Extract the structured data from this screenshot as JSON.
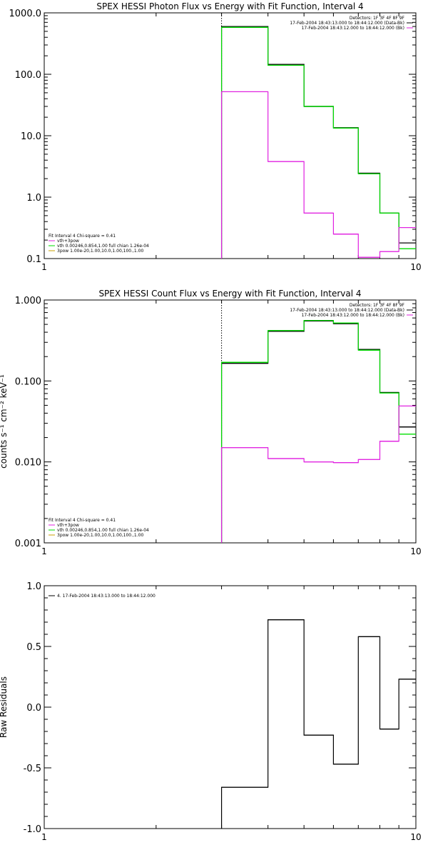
{
  "chart_data": [
    {
      "type": "line",
      "title": "SPEX HESSI Photon Flux vs Energy with Fit Function, Interval 4",
      "xscale": "log",
      "yscale": "log",
      "xlim": [
        1,
        10
      ],
      "ylim": [
        0.1,
        1000
      ],
      "xtick_labels": [
        {
          "value": 1,
          "label": "1"
        },
        {
          "value": 10,
          "label": "10"
        }
      ],
      "ytick_labels": [
        {
          "value": 0.1,
          "label": "0.1"
        },
        {
          "value": 1,
          "label": "1.0"
        },
        {
          "value": 10,
          "label": "10.0"
        },
        {
          "value": 100,
          "label": "100.0"
        },
        {
          "value": 1000,
          "label": "1000.0"
        }
      ],
      "vline_x": 3,
      "legend_top": [
        "Detectors: 1F 3F 4F 8F 9F",
        "17-Feb-2004 18:43:13.000 to 18:44:12.000 (Data-Bk)",
        "17-Feb-2004 18:43:12.000 to 18:44:12.000 (Bk)"
      ],
      "legend_bottom": [
        "Fit Interval  4    Chi-square = 0.41",
        "vth+3pow",
        "vth 0.00246,0.854,1.00  full chian 1.26e-04",
        "3pow 1.00e-20,1.00,10.0,1.00,100.,1.00"
      ],
      "bin_edges": [
        3,
        4,
        5,
        6,
        7,
        8,
        9,
        10
      ],
      "series": [
        {
          "name": "17-Feb-2004 18:43:13.000 to 18:44:12.000 (Data-Bk)",
          "color": "#000000",
          "values": [
            600,
            145,
            30,
            13.5,
            2.45,
            0.55,
            0.18
          ]
        },
        {
          "name": "vth 0.00246,0.854,1.00  full chian 1.26e-04",
          "color": "#00dd00",
          "values": [
            580,
            140,
            30,
            13.3,
            2.4,
            0.55,
            0.145
          ]
        },
        {
          "name": "17-Feb-2004 18:43:12.000 to 18:44:12.000 (Bk)",
          "color": "#e020e0",
          "values": [
            52,
            3.8,
            0.55,
            0.25,
            0.105,
            0.13,
            0.32
          ]
        }
      ]
    },
    {
      "type": "line",
      "title": "SPEX HESSI Count Flux vs Energy with Fit Function, Interval 4",
      "ylabel": "counts s⁻¹ cm⁻² keV⁻¹",
      "xscale": "log",
      "yscale": "log",
      "xlim": [
        1,
        10
      ],
      "ylim": [
        0.001,
        1
      ],
      "xtick_labels": [
        {
          "value": 1,
          "label": "1"
        },
        {
          "value": 10,
          "label": "10"
        }
      ],
      "ytick_labels": [
        {
          "value": 0.001,
          "label": "0.001"
        },
        {
          "value": 0.01,
          "label": "0.010"
        },
        {
          "value": 0.1,
          "label": "0.100"
        },
        {
          "value": 1,
          "label": "1.000"
        }
      ],
      "vline_x": 3,
      "legend_top": [
        "Detectors: 1F 3F 4F 8F 9F",
        "17-Feb-2004 18:43:13.000 to 18:44:12.000 (Data-Bk)",
        "17-Feb-2004 18:43:12.000 to 18:44:12.000 (Bk)"
      ],
      "legend_bottom": [
        "Fit Interval  4    Chi-square = 0.41",
        "vth+3pow",
        "vth 0.00246,0.854,1.00  full chian 1.26e-04",
        "3pow 1.00e-20,1.00,10.0,1.00,100.,1.00"
      ],
      "bin_edges": [
        3,
        4,
        5,
        6,
        7,
        8,
        9,
        10
      ],
      "series": [
        {
          "name": "17-Feb-2004 18:43:13.000 to 18:44:12.000 (Data-Bk)",
          "color": "#000000",
          "values": [
            0.165,
            0.41,
            0.55,
            0.51,
            0.245,
            0.072,
            0.027
          ]
        },
        {
          "name": "vth 0.00246,0.854,1.00  full chian 1.26e-04",
          "color": "#00dd00",
          "values": [
            0.17,
            0.42,
            0.56,
            0.52,
            0.24,
            0.071,
            0.022
          ]
        },
        {
          "name": "17-Feb-2004 18:43:12.000 to 18:44:12.000 (Bk)",
          "color": "#e020e0",
          "values": [
            0.015,
            0.011,
            0.01,
            0.0098,
            0.0107,
            0.018,
            0.049
          ]
        }
      ]
    },
    {
      "type": "line",
      "title": "",
      "ylabel": "Raw Residuals",
      "xscale": "log",
      "yscale": "linear",
      "xlim": [
        1,
        10
      ],
      "ylim": [
        -1,
        1
      ],
      "xtick_labels": [
        {
          "value": 1,
          "label": "1"
        },
        {
          "value": 10,
          "label": "10"
        }
      ],
      "ytick_labels": [
        {
          "value": -1,
          "label": "-1.0"
        },
        {
          "value": -0.5,
          "label": "-0.5"
        },
        {
          "value": 0,
          "label": "0.0"
        },
        {
          "value": 0.5,
          "label": "0.5"
        },
        {
          "value": 1,
          "label": "1.0"
        }
      ],
      "legend_top_left": [
        "4. 17-Feb-2004 18:43:13.000 to 18:44:12.000"
      ],
      "bin_edges": [
        3,
        4,
        5,
        6,
        7,
        8,
        9,
        10
      ],
      "series": [
        {
          "name": "4. 17-Feb-2004 18:43:13.000 to 18:44:12.000",
          "color": "#000000",
          "values": [
            -0.66,
            0.72,
            -0.23,
            -0.47,
            0.58,
            -0.18,
            0.23
          ]
        }
      ]
    }
  ]
}
